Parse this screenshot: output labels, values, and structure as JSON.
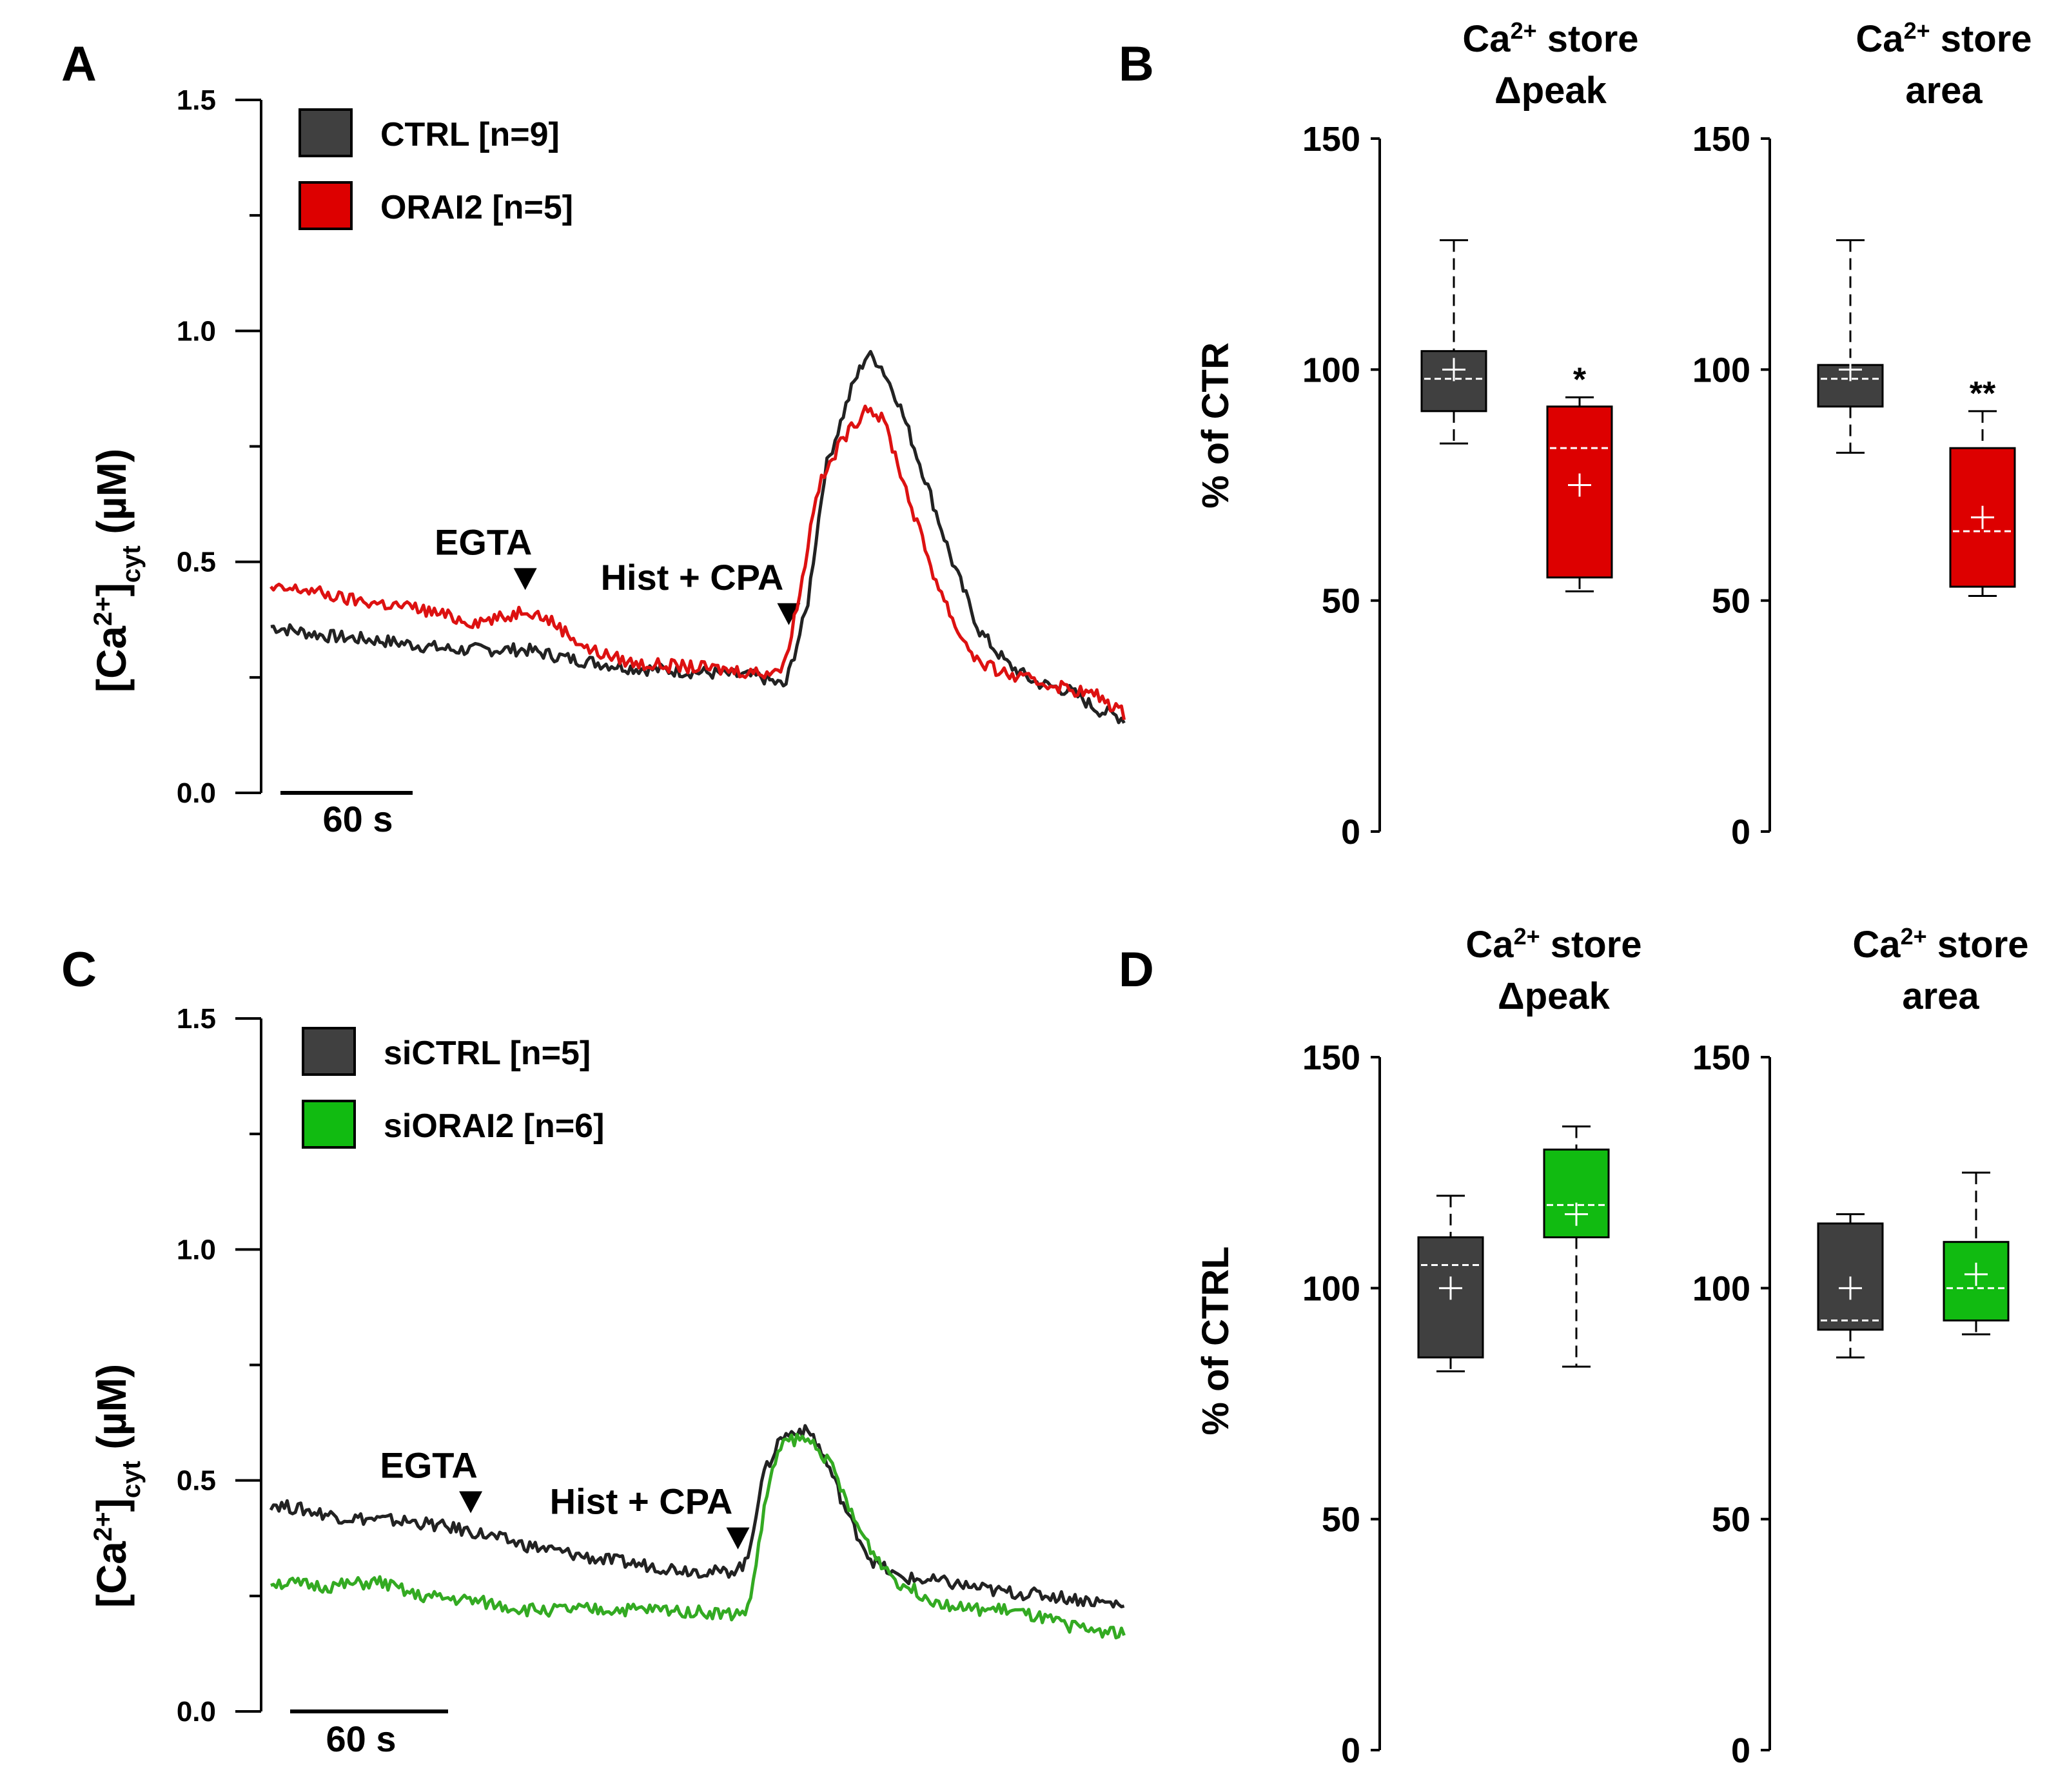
{
  "panels": {
    "A": {
      "letter": "A"
    },
    "B": {
      "letter": "B"
    },
    "C": {
      "letter": "C"
    },
    "D": {
      "letter": "D"
    }
  },
  "colors": {
    "ctrl": "#404040",
    "orai2": "#dd0000",
    "siorai2": "#11bb11",
    "trace_ctrl": "#222222",
    "trace_orai2": "#dd1111",
    "trace_siorai2": "#33aa22"
  },
  "chart_data": [
    {
      "id": "A",
      "type": "line",
      "ylabel_main": "[Ca",
      "ylabel_sup": "2+",
      "ylabel_after": "]",
      "ylabel_sub": "cyt",
      "ylabel_unit": " (µM)",
      "ylim": [
        0,
        1.5
      ],
      "yticks": [
        "0.0",
        "0.5",
        "1.0",
        "1.5"
      ],
      "xlim": [
        0,
        470
      ],
      "scalebar": "60 s",
      "legend": [
        "CTRL [n=9]",
        "ORAI2 [n=5]"
      ],
      "annotations": {
        "egta": "EGTA",
        "hist": "Hist + CPA"
      },
      "annotation_times": {
        "egta": 140,
        "hist": 285
      },
      "series": [
        {
          "name": "CTRL [n=9]",
          "color": "#222222",
          "points": [
            [
              0,
              0.36
            ],
            [
              30,
              0.34
            ],
            [
              60,
              0.33
            ],
            [
              100,
              0.31
            ],
            [
              140,
              0.31
            ],
            [
              165,
              0.29
            ],
            [
              200,
              0.27
            ],
            [
              240,
              0.26
            ],
            [
              270,
              0.25
            ],
            [
              283,
              0.23
            ],
            [
              295,
              0.4
            ],
            [
              305,
              0.7
            ],
            [
              320,
              0.88
            ],
            [
              328,
              0.95
            ],
            [
              335,
              0.93
            ],
            [
              345,
              0.85
            ],
            [
              360,
              0.68
            ],
            [
              375,
              0.5
            ],
            [
              390,
              0.35
            ],
            [
              405,
              0.28
            ],
            [
              420,
              0.24
            ],
            [
              440,
              0.22
            ],
            [
              455,
              0.18
            ],
            [
              470,
              0.16
            ]
          ]
        },
        {
          "name": "ORAI2 [n=5]",
          "color": "#dd1111",
          "points": [
            [
              0,
              0.44
            ],
            [
              20,
              0.44
            ],
            [
              40,
              0.42
            ],
            [
              80,
              0.4
            ],
            [
              110,
              0.37
            ],
            [
              130,
              0.38
            ],
            [
              140,
              0.4
            ],
            [
              155,
              0.37
            ],
            [
              175,
              0.31
            ],
            [
              200,
              0.28
            ],
            [
              240,
              0.27
            ],
            [
              270,
              0.26
            ],
            [
              282,
              0.27
            ],
            [
              292,
              0.45
            ],
            [
              300,
              0.65
            ],
            [
              315,
              0.77
            ],
            [
              320,
              0.79
            ],
            [
              328,
              0.84
            ],
            [
              338,
              0.8
            ],
            [
              350,
              0.65
            ],
            [
              365,
              0.47
            ],
            [
              378,
              0.35
            ],
            [
              390,
              0.28
            ],
            [
              410,
              0.25
            ],
            [
              435,
              0.23
            ],
            [
              455,
              0.21
            ],
            [
              470,
              0.17
            ]
          ]
        }
      ]
    },
    {
      "id": "C",
      "type": "line",
      "ylabel_main": "[Ca",
      "ylabel_sup": "2+",
      "ylabel_after": "]",
      "ylabel_sub": "cyt",
      "ylabel_unit": " (µM)",
      "ylim": [
        0,
        1.5
      ],
      "yticks": [
        "0.0",
        "0.5",
        "1.0",
        "1.5"
      ],
      "xlim": [
        0,
        470
      ],
      "scalebar": "60 s",
      "legend": [
        "siCTRL [n=5]",
        "siORAI2 [n=6]"
      ],
      "annotations": {
        "egta": "EGTA",
        "hist": "Hist + CPA"
      },
      "annotation_times": {
        "egta": 110,
        "hist": 257
      },
      "series": [
        {
          "name": "siCTRL [n=5]",
          "color": "#222222",
          "points": [
            [
              0,
              0.45
            ],
            [
              40,
              0.42
            ],
            [
              80,
              0.41
            ],
            [
              110,
              0.39
            ],
            [
              140,
              0.36
            ],
            [
              180,
              0.33
            ],
            [
              220,
              0.31
            ],
            [
              250,
              0.3
            ],
            [
              262,
              0.32
            ],
            [
              270,
              0.5
            ],
            [
              280,
              0.59
            ],
            [
              290,
              0.61
            ],
            [
              298,
              0.6
            ],
            [
              308,
              0.52
            ],
            [
              318,
              0.42
            ],
            [
              330,
              0.33
            ],
            [
              345,
              0.29
            ],
            [
              370,
              0.28
            ],
            [
              400,
              0.26
            ],
            [
              430,
              0.25
            ],
            [
              450,
              0.24
            ],
            [
              470,
              0.23
            ]
          ]
        },
        {
          "name": "siORAI2 [n=6]",
          "color": "#33aa22",
          "points": [
            [
              0,
              0.28
            ],
            [
              30,
              0.27
            ],
            [
              60,
              0.28
            ],
            [
              80,
              0.25
            ],
            [
              110,
              0.24
            ],
            [
              140,
              0.22
            ],
            [
              180,
              0.22
            ],
            [
              220,
              0.22
            ],
            [
              255,
              0.21
            ],
            [
              263,
              0.22
            ],
            [
              272,
              0.45
            ],
            [
              280,
              0.58
            ],
            [
              290,
              0.59
            ],
            [
              300,
              0.58
            ],
            [
              310,
              0.52
            ],
            [
              320,
              0.42
            ],
            [
              332,
              0.34
            ],
            [
              345,
              0.28
            ],
            [
              365,
              0.24
            ],
            [
              385,
              0.22
            ],
            [
              405,
              0.22
            ],
            [
              425,
              0.2
            ],
            [
              445,
              0.18
            ],
            [
              470,
              0.17
            ]
          ]
        }
      ]
    },
    {
      "id": "B",
      "type": "box",
      "ylabel": "% of CTR",
      "ylim": [
        0,
        150
      ],
      "yticks": [
        "0",
        "50",
        "100",
        "150"
      ],
      "subplots": [
        {
          "title_prefix": "Ca",
          "title_sup": "2+",
          "title_suffix": " store",
          "title_line2": "Δpeak",
          "boxes": [
            {
              "group": "CTRL",
              "color": "#404040",
              "whisker_low": 84,
              "q1": 91,
              "median": 98,
              "mean": 100,
              "q3": 104,
              "whisker_high": 128,
              "sig": ""
            },
            {
              "group": "ORAI2",
              "color": "#dd0000",
              "whisker_low": 52,
              "q1": 55,
              "median": 83,
              "mean": 75,
              "q3": 92,
              "whisker_high": 94,
              "sig": "*"
            }
          ]
        },
        {
          "title_prefix": "Ca",
          "title_sup": "2+",
          "title_suffix": " store",
          "title_line2": "area",
          "boxes": [
            {
              "group": "CTRL",
              "color": "#404040",
              "whisker_low": 82,
              "q1": 92,
              "median": 98,
              "mean": 100,
              "q3": 101,
              "whisker_high": 128,
              "sig": ""
            },
            {
              "group": "ORAI2",
              "color": "#dd0000",
              "whisker_low": 51,
              "q1": 53,
              "median": 65,
              "mean": 68,
              "q3": 83,
              "whisker_high": 91,
              "sig": "**"
            }
          ]
        }
      ]
    },
    {
      "id": "D",
      "type": "box",
      "ylabel": "% of CTRL",
      "ylim": [
        0,
        150
      ],
      "yticks": [
        "0",
        "50",
        "100",
        "150"
      ],
      "subplots": [
        {
          "title_prefix": "Ca",
          "title_sup": "2+",
          "title_suffix": " store",
          "title_line2": "Δpeak",
          "boxes": [
            {
              "group": "siCTRL",
              "color": "#404040",
              "whisker_low": 82,
              "q1": 85,
              "median": 105,
              "mean": 100,
              "q3": 111,
              "whisker_high": 120,
              "sig": ""
            },
            {
              "group": "siORAI2",
              "color": "#11bb11",
              "whisker_low": 83,
              "q1": 111,
              "median": 118,
              "mean": 116,
              "q3": 130,
              "whisker_high": 135,
              "sig": ""
            }
          ]
        },
        {
          "title_prefix": "Ca",
          "title_sup": "2+",
          "title_suffix": " store",
          "title_line2": "area",
          "boxes": [
            {
              "group": "siCTRL",
              "color": "#404040",
              "whisker_low": 85,
              "q1": 91,
              "median": 93,
              "mean": 100,
              "q3": 114,
              "whisker_high": 116,
              "sig": ""
            },
            {
              "group": "siORAI2",
              "color": "#11bb11",
              "whisker_low": 90,
              "q1": 93,
              "median": 100,
              "mean": 103,
              "q3": 110,
              "whisker_high": 125,
              "sig": ""
            }
          ]
        }
      ]
    }
  ]
}
